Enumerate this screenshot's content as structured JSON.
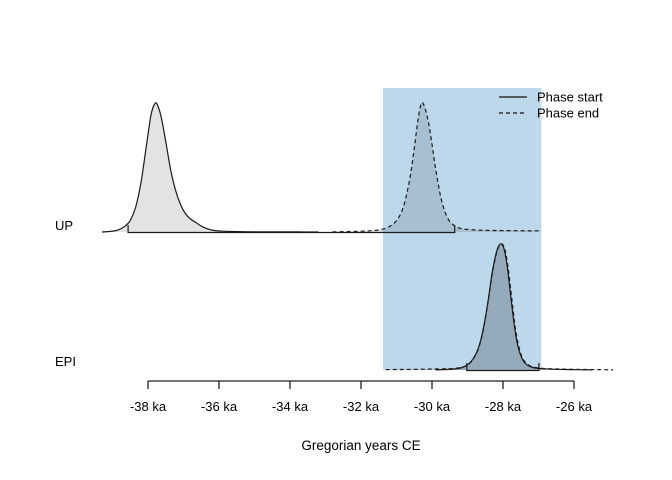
{
  "chart_data": {
    "type": "area",
    "subtype": "phase-boundary-posterior-densities",
    "title": "",
    "xlabel": "Gregorian years CE",
    "x_unit": "ka",
    "x_ticks_ka": [
      -38,
      -36,
      -34,
      -32,
      -30,
      -28,
      -26
    ],
    "x_tick_labels": [
      "-38 ka",
      "-36 ka",
      "-34 ka",
      "-32 ka",
      "-30 ka",
      "-28 ka",
      "-26 ka"
    ],
    "x_axis_range_ka": [
      -38,
      -26
    ],
    "grid": false,
    "line_color": "#1b1b1b",
    "fill_color": "rgba(0,0,0,0.11)",
    "legend": {
      "position": "top-right",
      "entries": [
        {
          "label": "Phase start",
          "line_style": "solid"
        },
        {
          "label": "Phase end",
          "line_style": "dashed"
        }
      ]
    },
    "highlight_region": {
      "x_from_ka": -31.38,
      "x_to_ka": -26.92,
      "color": "#BDD7EB"
    },
    "rows": [
      {
        "label": "UP",
        "hpd_interval_ka": [
          -38.56,
          -29.36
        ],
        "series": [
          {
            "name": "Phase start",
            "line_style": "solid",
            "peak_ka": -37.8,
            "points_ka_density": [
              [
                -39.3,
                0
              ],
              [
                -39.05,
                0.005
              ],
              [
                -38.85,
                0.015
              ],
              [
                -38.65,
                0.045
              ],
              [
                -38.5,
                0.09
              ],
              [
                -38.35,
                0.19
              ],
              [
                -38.2,
                0.38
              ],
              [
                -38.05,
                0.66
              ],
              [
                -37.92,
                0.9
              ],
              [
                -37.82,
                0.99
              ],
              [
                -37.74,
                0.99
              ],
              [
                -37.62,
                0.88
              ],
              [
                -37.5,
                0.7
              ],
              [
                -37.36,
                0.48
              ],
              [
                -37.22,
                0.32
              ],
              [
                -37.08,
                0.21
              ],
              [
                -36.94,
                0.14
              ],
              [
                -36.8,
                0.1
              ],
              [
                -36.66,
                0.075
              ],
              [
                -36.52,
                0.05
              ],
              [
                -36.38,
                0.03
              ],
              [
                -36.2,
                0.015
              ],
              [
                -36.0,
                0.008
              ],
              [
                -35.75,
                0.005
              ],
              [
                -35.45,
                0.003
              ],
              [
                -35.0,
                0.0015
              ],
              [
                -34.4,
                0.001
              ],
              [
                -33.8,
                0.0005
              ],
              [
                -33.2,
                0
              ]
            ]
          },
          {
            "name": "Phase end",
            "line_style": "dashed",
            "peak_ka": -30.3,
            "points_ka_density": [
              [
                -32.8,
                0.001
              ],
              [
                -32.4,
                0.003
              ],
              [
                -32.0,
                0.006
              ],
              [
                -31.7,
                0.01
              ],
              [
                -31.45,
                0.018
              ],
              [
                -31.25,
                0.035
              ],
              [
                -31.08,
                0.065
              ],
              [
                -30.92,
                0.12
              ],
              [
                -30.77,
                0.23
              ],
              [
                -30.62,
                0.42
              ],
              [
                -30.5,
                0.65
              ],
              [
                -30.4,
                0.86
              ],
              [
                -30.31,
                0.99
              ],
              [
                -30.24,
                0.99
              ],
              [
                -30.12,
                0.88
              ],
              [
                -30.0,
                0.68
              ],
              [
                -29.88,
                0.46
              ],
              [
                -29.76,
                0.28
              ],
              [
                -29.64,
                0.16
              ],
              [
                -29.52,
                0.09
              ],
              [
                -29.4,
                0.055
              ],
              [
                -29.28,
                0.035
              ],
              [
                -29.12,
                0.024
              ],
              [
                -28.9,
                0.018
              ],
              [
                -28.6,
                0.014
              ],
              [
                -28.3,
                0.012
              ],
              [
                -28.0,
                0.011
              ],
              [
                -27.6,
                0.01
              ],
              [
                -27.3,
                0.009
              ],
              [
                -27.1,
                0.009
              ],
              [
                -26.95,
                0.009
              ]
            ]
          }
        ]
      },
      {
        "label": "EPI",
        "hpd_interval_ka": [
          -29.02,
          -26.99
        ],
        "series": [
          {
            "name": "Phase start",
            "line_style": "solid",
            "peak_ka": -28.0,
            "points_ka_density": [
              [
                -29.9,
                0.001
              ],
              [
                -29.6,
                0.004
              ],
              [
                -29.35,
                0.009
              ],
              [
                -29.15,
                0.02
              ],
              [
                -28.98,
                0.045
              ],
              [
                -28.84,
                0.09
              ],
              [
                -28.7,
                0.17
              ],
              [
                -28.56,
                0.32
              ],
              [
                -28.42,
                0.55
              ],
              [
                -28.3,
                0.78
              ],
              [
                -28.18,
                0.94
              ],
              [
                -28.08,
                1.0
              ],
              [
                -27.98,
                0.97
              ],
              [
                -27.88,
                0.82
              ],
              [
                -27.78,
                0.58
              ],
              [
                -27.68,
                0.35
              ],
              [
                -27.58,
                0.19
              ],
              [
                -27.48,
                0.1
              ],
              [
                -27.38,
                0.055
              ],
              [
                -27.26,
                0.03
              ],
              [
                -27.1,
                0.016
              ],
              [
                -26.9,
                0.01
              ],
              [
                -26.6,
                0.006
              ],
              [
                -26.25,
                0.004
              ],
              [
                -25.9,
                0.002
              ],
              [
                -25.5,
                0.001
              ]
            ]
          },
          {
            "name": "Phase end",
            "line_style": "dashed",
            "peak_ka": -28.0,
            "points_ka_density": [
              [
                -31.3,
                0.003
              ],
              [
                -30.9,
                0.004
              ],
              [
                -30.5,
                0.005
              ],
              [
                -30.1,
                0.007
              ],
              [
                -29.7,
                0.009
              ],
              [
                -29.4,
                0.012
              ],
              [
                -29.15,
                0.022
              ],
              [
                -28.96,
                0.048
              ],
              [
                -28.82,
                0.095
              ],
              [
                -28.68,
                0.18
              ],
              [
                -28.54,
                0.34
              ],
              [
                -28.4,
                0.58
              ],
              [
                -28.28,
                0.8
              ],
              [
                -28.16,
                0.95
              ],
              [
                -28.05,
                1.0
              ],
              [
                -27.95,
                0.96
              ],
              [
                -27.85,
                0.8
              ],
              [
                -27.75,
                0.56
              ],
              [
                -27.65,
                0.33
              ],
              [
                -27.55,
                0.18
              ],
              [
                -27.45,
                0.095
              ],
              [
                -27.33,
                0.05
              ],
              [
                -27.2,
                0.028
              ],
              [
                -27.05,
                0.018
              ],
              [
                -26.85,
                0.012
              ],
              [
                -26.6,
                0.009
              ],
              [
                -26.3,
                0.007
              ],
              [
                -26.0,
                0.005
              ],
              [
                -25.7,
                0.004
              ],
              [
                -25.4,
                0.003
              ],
              [
                -25.15,
                0.002
              ],
              [
                -24.9,
                0.001
              ]
            ]
          }
        ]
      }
    ]
  }
}
